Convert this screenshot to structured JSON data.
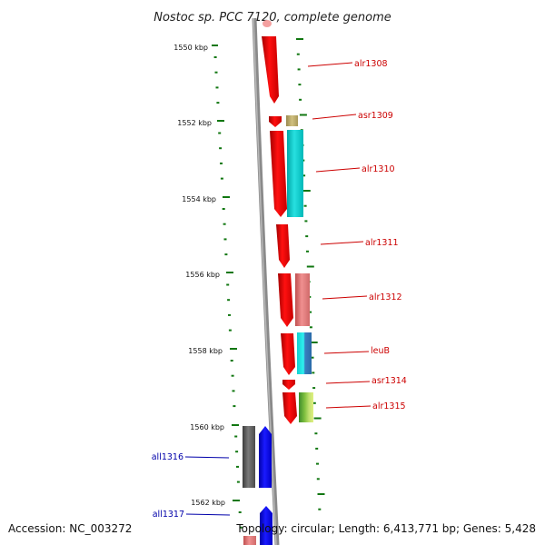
{
  "title": "Nostoc sp. PCC 7120, complete genome",
  "footer": {
    "accession": "Accession: NC_003272",
    "topology": "Topology: circular; Length: 6,413,771 bp; Genes: 5,428"
  },
  "scale": {
    "unit": "kbp",
    "ticks": [
      "1550 kbp",
      "1552 kbp",
      "1554 kbp",
      "1556 kbp",
      "1558 kbp",
      "1560 kbp",
      "1562 kbp"
    ]
  },
  "colors": {
    "forward_strand": "#ff0000",
    "reverse_strand": "#0000ff",
    "forward_label": "#cc0000",
    "reverse_label": "#0000aa",
    "tick_marks": "#117711",
    "backbone": "#8a8a8a"
  },
  "genes": {
    "forward": [
      {
        "name": "alr1308",
        "from_kbp": 1549.8,
        "to_kbp": 1551.7
      },
      {
        "name": "asr1309",
        "from_kbp": 1551.9,
        "to_kbp": 1552.1
      },
      {
        "name": "alr1310",
        "from_kbp": 1552.2,
        "to_kbp": 1554.5
      },
      {
        "name": "alr1311",
        "from_kbp": 1554.7,
        "to_kbp": 1555.8
      },
      {
        "name": "alr1312",
        "from_kbp": 1556.0,
        "to_kbp": 1557.4
      },
      {
        "name": "leuB",
        "from_kbp": 1557.5,
        "to_kbp": 1558.6
      },
      {
        "name": "asr1314",
        "from_kbp": 1558.8,
        "to_kbp": 1559.1
      },
      {
        "name": "alr1315",
        "from_kbp": 1559.2,
        "to_kbp": 1560.0
      }
    ],
    "reverse": [
      {
        "name": "all1316",
        "from_kbp": 1560.0,
        "to_kbp": 1561.6
      },
      {
        "name": "all1317",
        "from_kbp": 1562.1,
        "to_kbp": 1563.0
      }
    ]
  }
}
